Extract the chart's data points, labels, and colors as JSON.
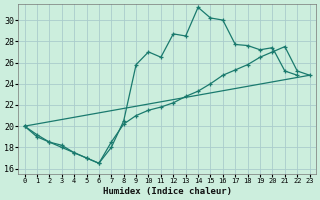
{
  "xlabel": "Humidex (Indice chaleur)",
  "background_color": "#cceedd",
  "grid_color": "#aacccc",
  "line_color": "#1a7a6e",
  "xlim": [
    -0.5,
    23.5
  ],
  "ylim": [
    15.5,
    31.5
  ],
  "xticks": [
    0,
    1,
    2,
    3,
    4,
    5,
    6,
    7,
    8,
    9,
    10,
    11,
    12,
    13,
    14,
    15,
    16,
    17,
    18,
    19,
    20,
    21,
    22,
    23
  ],
  "yticks": [
    16,
    18,
    20,
    22,
    24,
    26,
    28,
    30
  ],
  "line1_x": [
    0,
    1,
    2,
    3,
    4,
    5,
    6,
    7,
    8,
    9,
    10,
    11,
    12,
    13,
    14,
    15,
    16,
    17,
    18,
    19,
    20,
    21,
    22
  ],
  "line1_y": [
    20.0,
    19.0,
    18.5,
    18.0,
    17.5,
    17.0,
    16.5,
    18.0,
    20.5,
    25.8,
    27.0,
    26.5,
    28.7,
    28.5,
    31.2,
    30.2,
    30.0,
    27.7,
    27.6,
    27.2,
    27.4,
    25.2,
    24.8
  ],
  "line2_x": [
    0,
    1,
    2,
    3,
    4,
    5,
    6,
    7,
    8,
    9,
    10,
    11,
    12,
    13,
    14,
    15,
    16,
    17,
    18,
    19,
    20,
    21,
    22,
    23
  ],
  "line2_y": [
    20.0,
    19.2,
    18.5,
    18.2,
    17.5,
    17.0,
    16.5,
    18.5,
    20.2,
    21.0,
    21.5,
    21.8,
    22.2,
    22.8,
    23.3,
    24.0,
    24.8,
    25.3,
    25.8,
    26.5,
    27.0,
    27.5,
    25.2,
    24.8
  ],
  "line3_x": [
    0,
    23
  ],
  "line3_y": [
    20.0,
    24.8
  ]
}
